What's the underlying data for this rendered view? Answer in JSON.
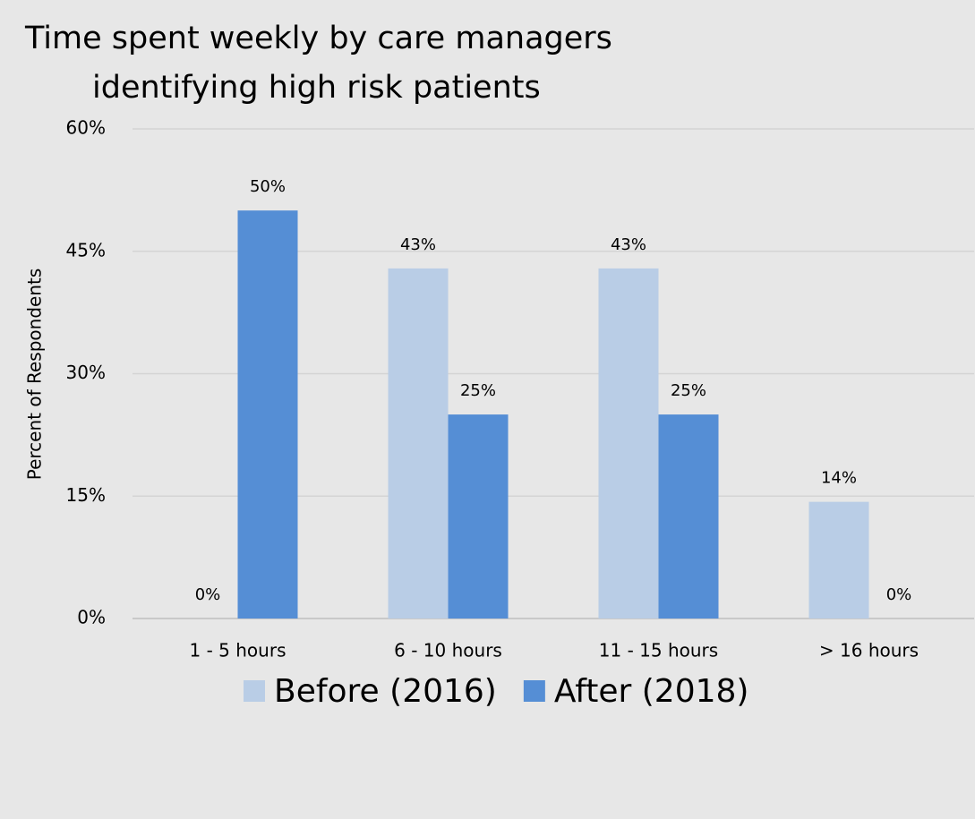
{
  "chart_data": {
    "type": "bar",
    "title": [
      "Time spent weekly by care managers",
      "identifying high risk patients"
    ],
    "ylabel": "Percent of Respondents",
    "categories": [
      "1 - 5 hours",
      "6 - 10 hours",
      "11 - 15 hours",
      "> 16 hours"
    ],
    "series": [
      {
        "name": "Before (2016)",
        "color": "#b9cde6",
        "values": [
          0,
          42.9,
          42.9,
          14.3
        ],
        "value_labels": [
          "0%",
          "43%",
          "43%",
          "14%"
        ]
      },
      {
        "name": "After (2018)",
        "color": "#558ed5",
        "values": [
          50,
          25,
          25,
          0
        ],
        "value_labels": [
          "50%",
          "25%",
          "25%",
          "0%"
        ]
      }
    ],
    "ylim": [
      0,
      60
    ],
    "yticks": [
      {
        "value": 0,
        "label": "0%"
      },
      {
        "value": 15,
        "label": "15%"
      },
      {
        "value": 30,
        "label": "30%"
      },
      {
        "value": 45,
        "label": "45%"
      },
      {
        "value": 60,
        "label": "60%"
      }
    ],
    "grid": true,
    "legend": "bottom"
  }
}
